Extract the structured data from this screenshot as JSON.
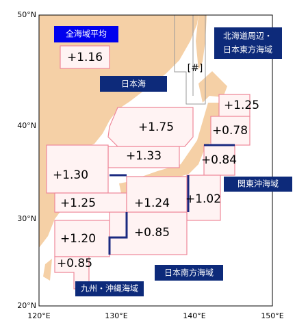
{
  "map": {
    "lat_labels": [
      "50°N",
      "40°N",
      "30°N",
      "20°N"
    ],
    "lon_labels": [
      "120°E",
      "130°E",
      "140°E",
      "150°E"
    ]
  },
  "areas": [
    {
      "label": "全海域平均"
    },
    {
      "label": "日本海"
    },
    {
      "label": "北海道周辺・",
      "label2": "日本東方海域"
    },
    {
      "label": "関東沖海域"
    },
    {
      "label": "日本南方海域"
    },
    {
      "label": "九州・沖縄海域"
    }
  ],
  "marker": "[#]",
  "values": [
    "+1.16",
    "+1.75",
    "+1.25",
    "+0.78",
    "+0.84",
    "+1.33",
    "+1.30",
    "+1.25",
    "+1.24",
    "+1.02",
    "+1.20",
    "+0.85",
    "+0.85"
  ]
}
